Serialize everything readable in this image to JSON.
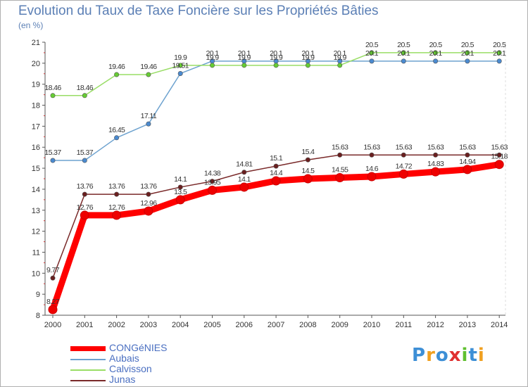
{
  "chart_data": {
    "type": "line",
    "title": "Evolution du Taux de Taxe Foncière sur les Propriétés Bâties",
    "ylabel": "(en %)",
    "xlabel": "",
    "x": [
      "2000",
      "2001",
      "2002",
      "2003",
      "2004",
      "2005",
      "2006",
      "2007",
      "2008",
      "2009",
      "2010",
      "2011",
      "2012",
      "2013",
      "2014"
    ],
    "ylim": [
      8,
      21
    ],
    "yticks": [
      "8",
      "9",
      "10",
      "11",
      "12",
      "13",
      "14",
      "15",
      "16",
      "17",
      "18",
      "19",
      "20",
      "21"
    ],
    "grid": false,
    "series": [
      {
        "name": "CONGéNIES",
        "color": "#ff0000",
        "values": [
          8.27,
          12.76,
          12.76,
          12.96,
          13.5,
          13.95,
          14.1,
          14.4,
          14.5,
          14.55,
          14.6,
          14.72,
          14.83,
          14.94,
          15.18
        ],
        "labels": [
          "8.27",
          "12.76",
          "12.76",
          "12.96",
          "13.5",
          "13.95",
          "14.1",
          "14.4",
          "14.5",
          "14.55",
          "14.6",
          "14.72",
          "14.83",
          "14.94",
          "15.18"
        ]
      },
      {
        "name": "Aubais",
        "color": "#6da2cf",
        "values": [
          15.37,
          15.37,
          16.45,
          17.11,
          19.51,
          20.1,
          20.1,
          20.1,
          20.1,
          20.1,
          20.1,
          20.1,
          20.1,
          20.1,
          20.1
        ],
        "labels": [
          "15.37",
          "15.37",
          "16.45",
          "17.11",
          "19.51",
          "20.1",
          "20.1",
          "20.1",
          "20.1",
          "20.1",
          "20.1",
          "20.1",
          "20.1",
          "20.1",
          "20.1"
        ]
      },
      {
        "name": "Calvisson",
        "color": "#99dd66",
        "values": [
          18.46,
          18.46,
          19.46,
          19.46,
          19.9,
          19.9,
          19.9,
          19.9,
          19.9,
          19.9,
          20.5,
          20.5,
          20.5,
          20.5,
          20.5
        ],
        "labels": [
          "18.46",
          "18.46",
          "19.46",
          "19.46",
          "19.9",
          "19.9",
          "19.9",
          "19.9",
          "19.9",
          "19.9",
          "20.5",
          "20.5",
          "20.5",
          "20.5",
          "20.5"
        ]
      },
      {
        "name": "Junas",
        "color": "#7a2a2a",
        "values": [
          9.77,
          13.76,
          13.76,
          13.76,
          14.1,
          14.38,
          14.81,
          15.1,
          15.4,
          15.63,
          15.63,
          15.63,
          15.63,
          15.63,
          15.63
        ],
        "labels": [
          "9.77",
          "13.76",
          "13.76",
          "13.76",
          "14.1",
          "14.38",
          "14.81",
          "15.1",
          "15.4",
          "15.63",
          "15.63",
          "15.63",
          "15.63",
          "15.63",
          "15.63"
        ]
      }
    ],
    "legend": [
      "CONGéNIES",
      "Aubais",
      "Calvisson",
      "Junas"
    ]
  },
  "logo": {
    "letters": [
      "P",
      "r",
      "o",
      "x",
      "i",
      "t",
      "i"
    ],
    "colors": [
      "#3d8fd6",
      "#f0a020",
      "#3d8fd6",
      "#e03030",
      "#60c030",
      "#3d8fd6",
      "#f0a020"
    ]
  }
}
